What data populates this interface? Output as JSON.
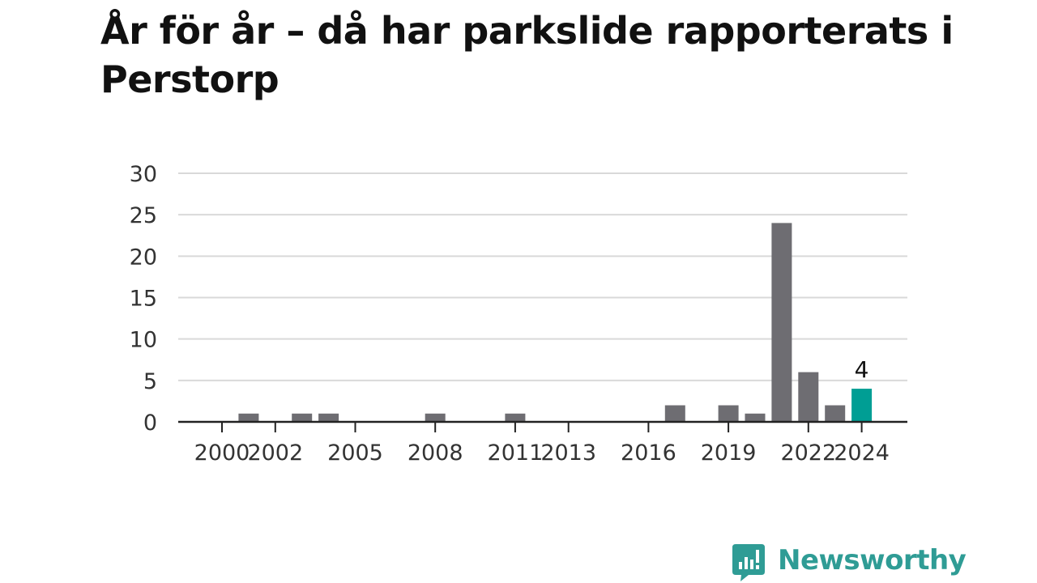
{
  "header": {
    "title": "År för år – då har parkslide rapporterats i Perstorp"
  },
  "brand": {
    "name": "Newsworthy",
    "logo_icon": "newsworthy-chat-bars-icon",
    "color": "#2f9c95"
  },
  "colors": {
    "bar": "#6e6d72",
    "highlight": "#009e94",
    "grid": "#d9d9d9",
    "axis": "#222222",
    "text": "#333333"
  },
  "chart_data": {
    "type": "bar",
    "title": "År för år – då har parkslide rapporterats i Perstorp",
    "xlabel": "",
    "ylabel": "",
    "categories": [
      "2000",
      "2001",
      "2002",
      "2003",
      "2004",
      "2005",
      "2006",
      "2007",
      "2008",
      "2009",
      "2010",
      "2011",
      "2012",
      "2013",
      "2014",
      "2015",
      "2016",
      "2017",
      "2018",
      "2019",
      "2020",
      "2021",
      "2022",
      "2023",
      "2024"
    ],
    "values": [
      0,
      1,
      0,
      1,
      1,
      0,
      0,
      0,
      1,
      0,
      0,
      1,
      0,
      0,
      0,
      0,
      0,
      2,
      0,
      2,
      1,
      24,
      6,
      2,
      4
    ],
    "x_tick_labels": [
      "2000",
      "2002",
      "2005",
      "2008",
      "2011",
      "2013",
      "2016",
      "2019",
      "2022",
      "2024"
    ],
    "ylim": [
      0,
      30
    ],
    "yticks": [
      0,
      5,
      10,
      15,
      20,
      25,
      30
    ],
    "highlight_category": "2024",
    "data_labels": [
      {
        "category": "2024",
        "text": "4"
      }
    ],
    "grid": true,
    "legend": "none"
  }
}
